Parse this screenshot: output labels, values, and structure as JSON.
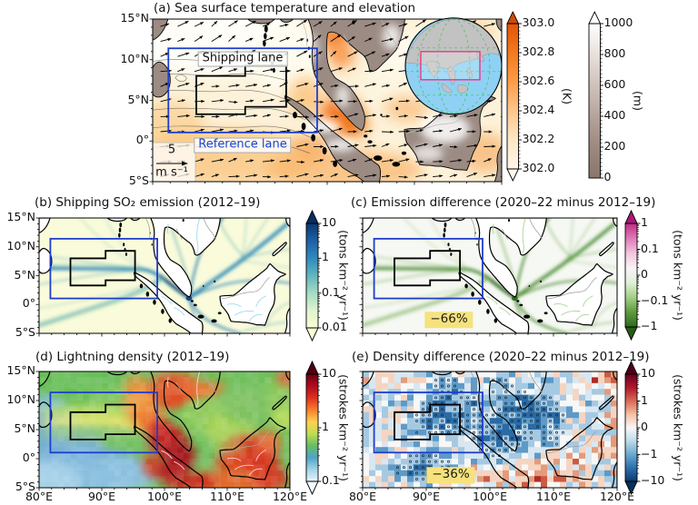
{
  "panels": {
    "a": {
      "title": "(a) Sea surface temperature and elevation",
      "yticks": [
        "15°N",
        "10°N",
        "5°N",
        "0°",
        "5°S"
      ],
      "shipping_lane_label": "Shipping lane",
      "reference_lane_label": "Reference lane",
      "quiver_key_value": "5",
      "quiver_key_unit": "m s⁻¹",
      "sst_colorbar": {
        "unit": "(K)",
        "ticks": [
          "303.0",
          "302.8",
          "302.6",
          "302.4",
          "302.2",
          "302.0"
        ]
      },
      "elev_colorbar": {
        "unit": "(m)",
        "ticks": [
          "1000",
          "800",
          "600",
          "400",
          "200",
          "0"
        ]
      }
    },
    "b": {
      "title": "(b) Shipping SO₂ emission (2012–19)",
      "yticks": [
        "15°N",
        "10°N",
        "5°N",
        "0°",
        "5°S"
      ],
      "colorbar": {
        "unit": "(tons km⁻² yr⁻¹)",
        "ticks": [
          "10",
          "1",
          "0.1",
          "0.01"
        ]
      }
    },
    "c": {
      "title": "(c) Emission difference (2020–22 minus 2012–19)",
      "colorbar": {
        "unit": "(tons km⁻² yr⁻¹)",
        "ticks": [
          "1",
          "0.1",
          "0",
          "−0.1",
          "−1"
        ]
      },
      "annotation": "−66%"
    },
    "d": {
      "title": "(d) Lightning density (2012–19)",
      "yticks": [
        "15°N",
        "10°N",
        "5°N",
        "0°",
        "5°S"
      ],
      "xticks": [
        "80°E",
        "90°E",
        "100°E",
        "110°E",
        "120°E"
      ],
      "colorbar": {
        "unit": "(strokes km⁻² yr⁻¹)",
        "ticks": [
          "10",
          "1",
          "0.1"
        ]
      }
    },
    "e": {
      "title": "(e) Density difference (2020–22 minus 2012–19)",
      "xticks": [
        "80°E",
        "90°E",
        "100°E",
        "110°E",
        "120°E"
      ],
      "colorbar": {
        "unit": "(strokes km⁻² yr⁻¹)",
        "ticks": [
          "10",
          "1",
          "0",
          "−1",
          "−10"
        ]
      },
      "annotation": "−36%"
    }
  },
  "chart_data": [
    {
      "panel": "a",
      "type": "map",
      "title": "Sea surface temperature and elevation",
      "lon_range_deg_e": [
        80,
        120
      ],
      "lat_range_deg_n": [
        -5,
        15
      ],
      "colorbars": [
        {
          "variable": "sea surface temperature",
          "unit": "K",
          "min": 302.0,
          "max": 303.0,
          "tick_step": 0.2
        },
        {
          "variable": "elevation",
          "unit": "m",
          "min": 0,
          "max": 1000,
          "tick_step": 200
        }
      ],
      "overlays": [
        "wind vectors (quiver)",
        "Shipping lane polygon",
        "Reference lane rectangle",
        "globe inset with study-region box"
      ],
      "quiver_key": {
        "value": 5,
        "unit": "m s⁻¹"
      }
    },
    {
      "panel": "b",
      "type": "map-heatmap",
      "variable": "shipping SO₂ emission",
      "period": "2012–19",
      "unit": "tons km⁻² yr⁻¹",
      "scale": "log",
      "colorbar_ticks": [
        10,
        1,
        0.1,
        0.01
      ],
      "pattern": "shipping lanes converge at Malacca Strait and Singapore"
    },
    {
      "panel": "c",
      "type": "map-heatmap",
      "variable": "shipping SO₂ emission difference",
      "period": "2020–22 minus 2012–19",
      "unit": "tons km⁻² yr⁻¹",
      "scale": "symlog",
      "colorbar_ticks": [
        1,
        0.1,
        0,
        -0.1,
        -1
      ],
      "shipping_lane_change_percent": -66
    },
    {
      "panel": "d",
      "type": "map-heatmap",
      "variable": "lightning density",
      "period": "2012–19",
      "unit": "strokes km⁻² yr⁻¹",
      "scale": "log",
      "colorbar_ticks": [
        10,
        1,
        0.1
      ]
    },
    {
      "panel": "e",
      "type": "map-heatmap",
      "variable": "lightning density difference",
      "period": "2020–22 minus 2012–19",
      "unit": "strokes km⁻² yr⁻¹",
      "scale": "symlog",
      "colorbar_ticks": [
        10,
        1,
        0,
        -1,
        -10
      ],
      "shipping_lane_change_percent": -36,
      "stippling": "open dots mark significant change"
    }
  ]
}
